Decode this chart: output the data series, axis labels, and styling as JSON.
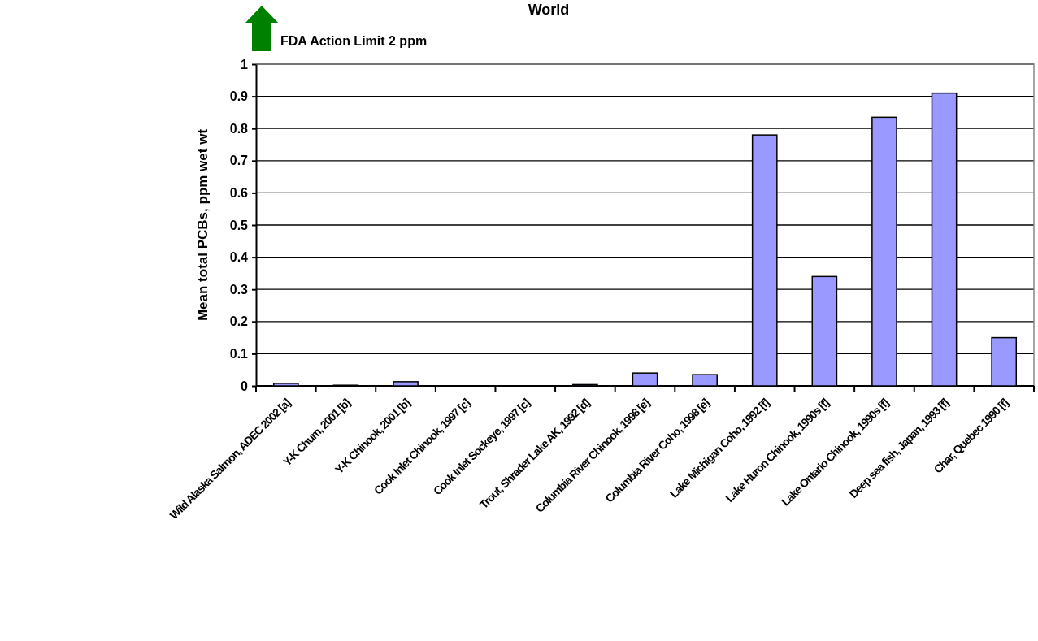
{
  "chart_data": {
    "type": "bar",
    "title": "World",
    "ylabel": "Mean total PCBs, ppm wet wt",
    "annotations": [
      "FDA Action Limit 2 ppm"
    ],
    "categories": [
      "Wild Alaska Salmon, ADEC 2002 [a]",
      "Y-K Chum, 2001 [b]",
      "Y-K Chinook, 2001 [b]",
      "Cook Inlet Chinook, 1997 [c]",
      "Cook Inlet Sockeye, 1997 [c]",
      "Trout, Shrader Lake AK, 1992 [d]",
      "Columbia River Chinook, 1998 [e]",
      "Columbia River Coho, 1998 [e]",
      "Lake Michigan Coho, 1992 [f]",
      "Lake Huron Chinook, 1990s [f]",
      "Lake Ontario Chinook, 1990s [f]",
      "Deep sea fish, Japan, 1993 [f]",
      "Char, Quebec 1990 [f]"
    ],
    "values": [
      0.008,
      0.002,
      0.013,
      0,
      0,
      0.004,
      0.04,
      0.035,
      0.78,
      0.34,
      0.835,
      0.91,
      0.15
    ],
    "color": "#9999ff",
    "ylim": [
      0,
      1
    ],
    "yticks": [
      0,
      0.1,
      0.2,
      0.3,
      0.4,
      0.5,
      0.6,
      0.7,
      0.8,
      0.9,
      1
    ],
    "grid": "y"
  }
}
